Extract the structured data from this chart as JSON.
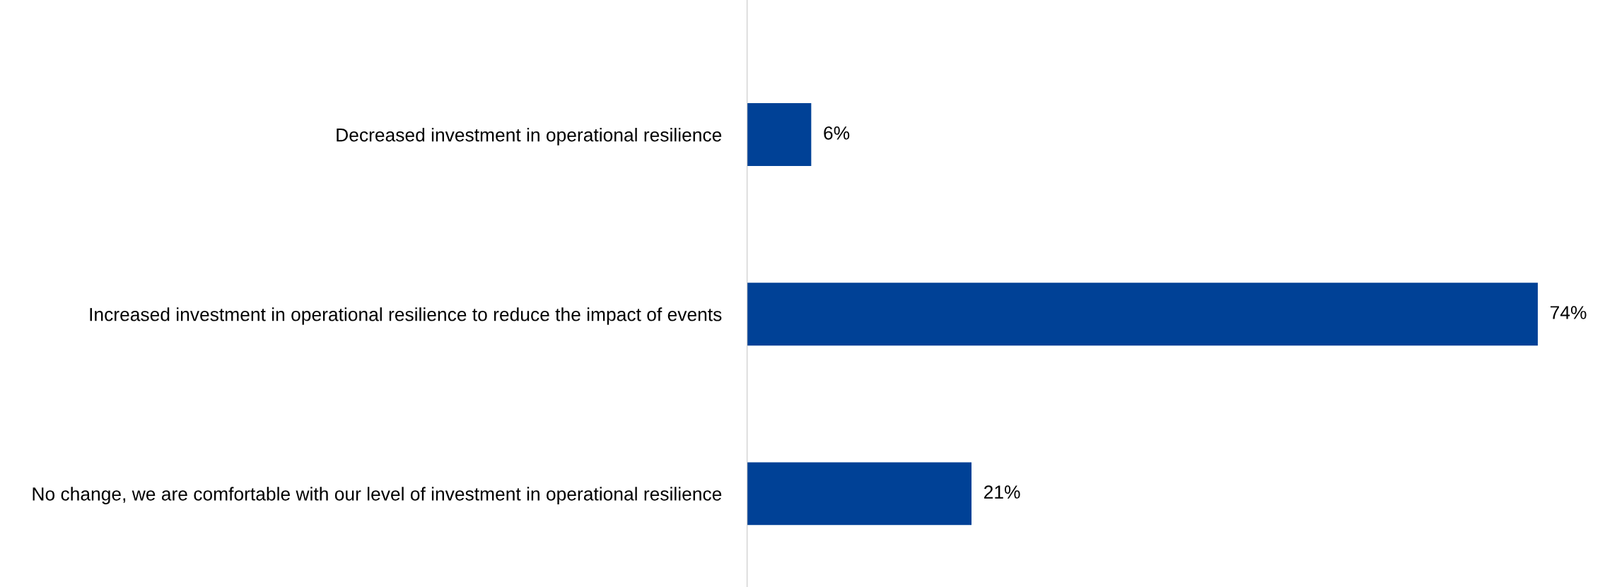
{
  "chart_data": {
    "type": "bar",
    "orientation": "horizontal",
    "categories": [
      "Decreased investment in operational resilience",
      "Increased investment in operational resilience to reduce the impact of events",
      "No change, we are comfortable with our level of investment in operational resilience"
    ],
    "values": [
      6,
      74,
      21
    ],
    "color": "#004196",
    "value_labels": [
      "6%",
      "74%",
      "21%"
    ],
    "tick_labels": "y",
    "grid": false,
    "legend": false
  }
}
